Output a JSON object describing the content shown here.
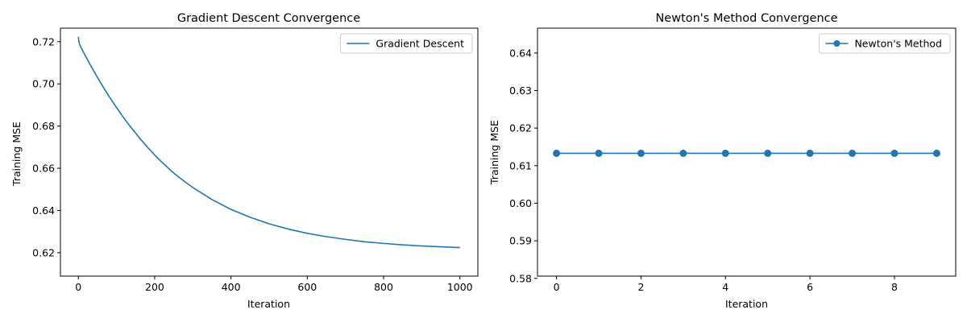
{
  "chart_data": [
    {
      "type": "line",
      "title": "Gradient Descent Convergence",
      "xlabel": "Iteration",
      "ylabel": "Training MSE",
      "xlim": [
        -47,
        1047
      ],
      "ylim": [
        0.6089,
        0.7264
      ],
      "xticks": [
        0,
        200,
        400,
        600,
        800,
        1000
      ],
      "yticks": [
        0.62,
        0.64,
        0.66,
        0.68,
        0.7,
        0.72
      ],
      "ytick_decimals": 2,
      "grid": false,
      "legend": "top-right",
      "series": [
        {
          "name": "Gradient Descent",
          "color": "#1f77b4",
          "marker": "none",
          "x": [
            0,
            1,
            3,
            6,
            10,
            15,
            20,
            30,
            40,
            50,
            60,
            80,
            100,
            120,
            140,
            160,
            180,
            200,
            220,
            250,
            280,
            300,
            350,
            400,
            450,
            500,
            550,
            600,
            650,
            700,
            750,
            800,
            850,
            900,
            950,
            1000
          ],
          "y": [
            0.7223,
            0.7205,
            0.7188,
            0.7176,
            0.7162,
            0.7145,
            0.7128,
            0.7094,
            0.7062,
            0.7031,
            0.7,
            0.6942,
            0.6888,
            0.6836,
            0.6789,
            0.6744,
            0.6702,
            0.6663,
            0.6627,
            0.6577,
            0.6535,
            0.6509,
            0.6452,
            0.6405,
            0.6368,
            0.6337,
            0.6312,
            0.6292,
            0.6276,
            0.6263,
            0.6252,
            0.6244,
            0.6237,
            0.6232,
            0.6228,
            0.6224
          ]
        }
      ]
    },
    {
      "type": "line",
      "title": "Newton's Method Convergence",
      "xlabel": "Iteration",
      "ylabel": "Training MSE",
      "xlim": [
        -0.45,
        9.45
      ],
      "ylim": [
        0.5806,
        0.6466
      ],
      "xticks": [
        0,
        2,
        4,
        6,
        8
      ],
      "yticks": [
        0.58,
        0.59,
        0.6,
        0.61,
        0.62,
        0.63,
        0.64
      ],
      "ytick_decimals": 2,
      "grid": false,
      "legend": "top-right",
      "series": [
        {
          "name": "Newton's Method",
          "color": "#1f77b4",
          "marker": "circle",
          "x": [
            0,
            1,
            2,
            3,
            4,
            5,
            6,
            7,
            8,
            9
          ],
          "y": [
            0.6133,
            0.6133,
            0.6133,
            0.6133,
            0.6133,
            0.6133,
            0.6133,
            0.6133,
            0.6133,
            0.6133
          ]
        }
      ]
    }
  ]
}
